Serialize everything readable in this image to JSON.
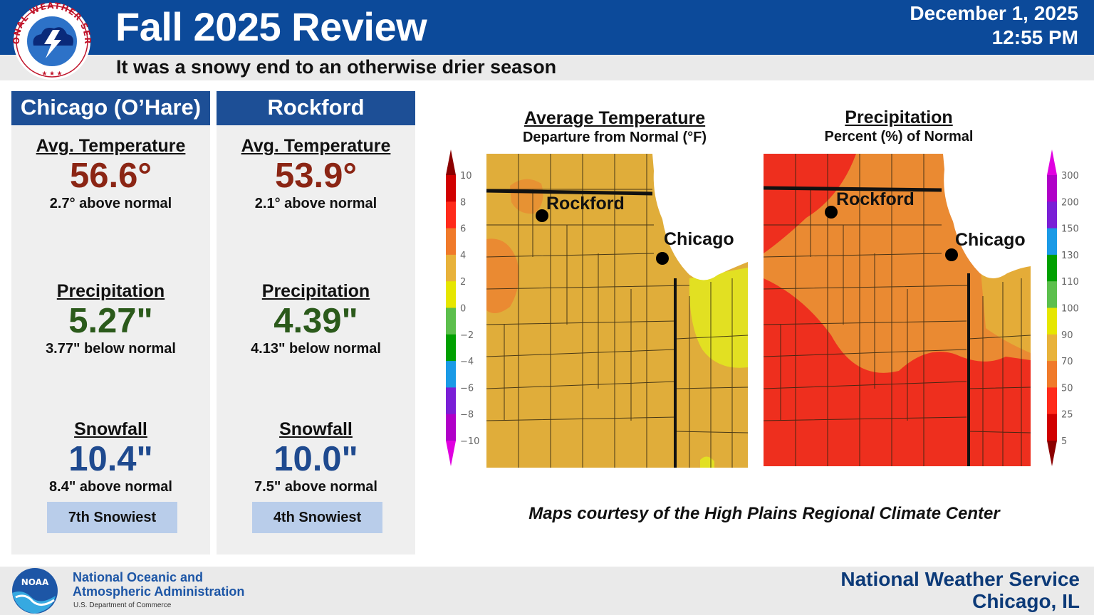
{
  "header": {
    "title": "Fall 2025 Review",
    "subtitle": "It was a snowy end to an otherwise drier season",
    "date": "December 1, 2025",
    "time": "12:55 PM",
    "logo_text": "NATIONAL WEATHER SERVICE"
  },
  "stations": [
    {
      "name": "Chicago (O’Hare)",
      "temp_label": "Avg. Temperature",
      "temp_value": "56.6°",
      "temp_note": "2.7° above normal",
      "precip_label": "Precipitation",
      "precip_value": "5.27\"",
      "precip_note": "3.77\" below normal",
      "snow_label": "Snowfall",
      "snow_value": "10.4\"",
      "snow_note": "8.4\" above normal",
      "rank": "7th Snowiest"
    },
    {
      "name": "Rockford",
      "temp_label": "Avg. Temperature",
      "temp_value": "53.9°",
      "temp_note": "2.1° above normal",
      "precip_label": "Precipitation",
      "precip_value": "4.39\"",
      "precip_note": "4.13\" below normal",
      "snow_label": "Snowfall",
      "snow_value": "10.0\"",
      "snow_note": "7.5\" above normal",
      "rank": "4th Snowiest"
    }
  ],
  "maps": {
    "temperature": {
      "title": "Average Temperature",
      "subtitle": "Departure from Normal (°F)",
      "scale_ticks": [
        "10",
        "8",
        "6",
        "4",
        "2",
        "0",
        "−2",
        "−4",
        "−6",
        "−8",
        "−10"
      ],
      "scale_colors": [
        "#8b0000",
        "#d10000",
        "#ff2a1a",
        "#f07a2a",
        "#e8b23a",
        "#e6e600",
        "#5cbf4c",
        "#00a000",
        "#1a9ae6",
        "#7a1fd6",
        "#b000c8",
        "#e000e0"
      ]
    },
    "precipitation": {
      "title": "Precipitation",
      "subtitle": "Percent (%) of Normal",
      "scale_ticks": [
        "300",
        "200",
        "150",
        "130",
        "110",
        "100",
        "90",
        "70",
        "50",
        "25",
        "5"
      ],
      "scale_colors": [
        "#e000e0",
        "#b000c8",
        "#7a1fd6",
        "#1a9ae6",
        "#00a000",
        "#5cbf4c",
        "#e6e600",
        "#e8b23a",
        "#f07a2a",
        "#ff2a1a",
        "#d10000",
        "#8b0000"
      ]
    },
    "city_labels": {
      "rockford": "Rockford",
      "chicago": "Chicago"
    },
    "credit": "Maps courtesy of the High Plains Regional Climate Center"
  },
  "footer": {
    "agency_line1": "National Oceanic and",
    "agency_line2": "Atmospheric Administration",
    "agency_line3": "U.S. Department of Commerce",
    "noaa_logo_text": "NOAA",
    "office_name": "National Weather Service",
    "office_city": "Chicago, IL"
  }
}
